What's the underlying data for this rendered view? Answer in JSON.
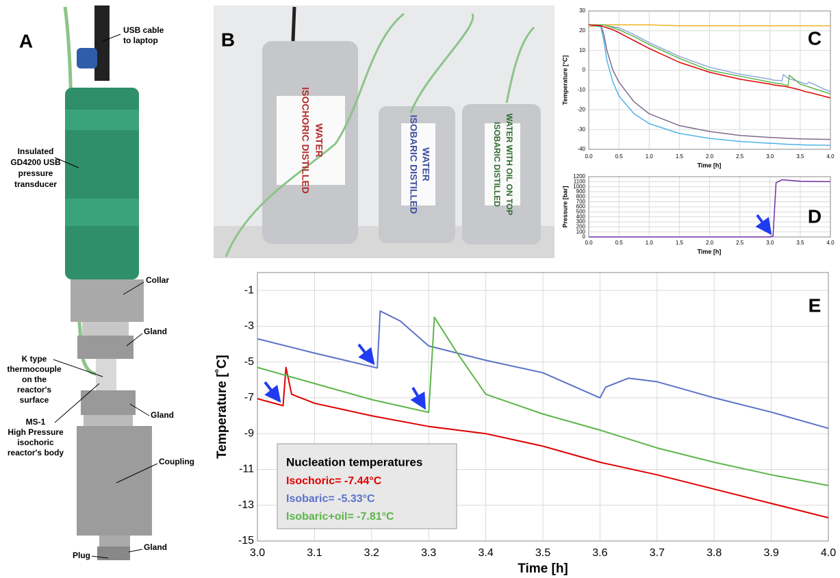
{
  "panel_a": {
    "label": "A",
    "annotations": [
      {
        "lines": [
          "USB cable",
          "to laptop"
        ]
      },
      {
        "lines": [
          "Insulated",
          "GD4200 USB",
          "pressure",
          "transducer"
        ]
      },
      {
        "lines": [
          "Collar"
        ]
      },
      {
        "lines": [
          "Gland"
        ]
      },
      {
        "lines": [
          "K type",
          "thermocouple",
          "on the",
          "reactor's",
          "surface"
        ]
      },
      {
        "lines": [
          "Gland"
        ]
      },
      {
        "lines": [
          "MS-1",
          "High Pressure",
          "isochoric",
          "reactor's body"
        ]
      },
      {
        "lines": [
          "Coupling"
        ]
      },
      {
        "lines": [
          "Plug"
        ]
      },
      {
        "lines": [
          "Gland"
        ]
      }
    ]
  },
  "panel_b": {
    "label": "B",
    "bottles": [
      {
        "lines": [
          "ISOCHORIC DISTILLED",
          "WATER"
        ]
      },
      {
        "lines": [
          "ISOBARIC DISTILLED",
          "WATER"
        ]
      },
      {
        "lines": [
          "ISOBARIC DISTILLED",
          "WATER WITH OIL ON TOP"
        ]
      }
    ]
  },
  "chart_data": [
    {
      "type": "line",
      "panel_label": "C",
      "x_label": "Time [h]",
      "y_label": "Temperature [°C]",
      "x": [
        0,
        0.2,
        0.25,
        0.3,
        0.4,
        0.5,
        0.75,
        1,
        1.5,
        2,
        2.5,
        3,
        3.05,
        3.2,
        3.22,
        3.3,
        3.32,
        3.5,
        3.6,
        3.65,
        4.0
      ],
      "xlim": [
        0,
        4
      ],
      "xticks": [
        {
          "value": 0,
          "label": "0.0"
        },
        0.5,
        {
          "value": 1,
          "label": "1.0"
        },
        1.5,
        {
          "value": 2,
          "label": "2.0"
        },
        2.5,
        {
          "value": 3,
          "label": "3.0"
        },
        3.5,
        {
          "value": 4,
          "label": "4.0"
        }
      ],
      "ylim": [
        -40,
        30
      ],
      "yticks": [
        -40,
        -30,
        -20,
        -10,
        0,
        10,
        20,
        30
      ],
      "grid": true,
      "series": [
        {
          "color": "#f0b323",
          "values": [
            22,
            22.5,
            23,
            23,
            23,
            23,
            23,
            23,
            22.5,
            22.5,
            22.5,
            22.5,
            22.5,
            22.5,
            22.5,
            22.5,
            22.5,
            22.5,
            22.5,
            22.5,
            22.5
          ]
        },
        {
          "color": "#7f6a8a",
          "values": [
            23,
            23,
            18,
            10,
            0,
            -6,
            -16,
            -22,
            -28,
            -31,
            -33,
            -34,
            -34,
            -34.3,
            -34.3,
            -34.5,
            -34.5,
            -34.7,
            -34.8,
            -34.8,
            -35
          ]
        },
        {
          "color": "#4fb3e8",
          "values": [
            23,
            22,
            15,
            5,
            -6,
            -13,
            -22,
            -27,
            -32,
            -34.5,
            -36,
            -37,
            -37,
            -37.3,
            -37.3,
            -37.5,
            -37.5,
            -37.7,
            -37.8,
            -37.8,
            -38
          ]
        },
        {
          "color": "#8fa8dc",
          "values": [
            23,
            23,
            23,
            22.5,
            22,
            21.5,
            18,
            14,
            7,
            1.5,
            -2,
            -4.5,
            -5,
            -5.3,
            -2.2,
            -4,
            -4.3,
            -6,
            -7,
            -6,
            -11
          ]
        },
        {
          "color": "#5db54a",
          "values": [
            23,
            23,
            23,
            22.5,
            21.5,
            20.5,
            17,
            13,
            6,
            0,
            -3,
            -6,
            -6.3,
            -7,
            -7.2,
            -7.8,
            -2.5,
            -7,
            -8,
            -8.5,
            -12
          ]
        },
        {
          "color": "#e00000",
          "values": [
            23,
            22.5,
            22,
            21.5,
            20.5,
            19,
            15,
            11,
            4,
            -1,
            -4.5,
            -7,
            -7.4,
            -8,
            -8,
            -8.5,
            -8.6,
            -10,
            -11,
            -11.2,
            -14
          ]
        }
      ]
    },
    {
      "type": "line",
      "panel_label": "D",
      "x_label": "Time [h]",
      "y_label": "Pressure [bar]",
      "x": [
        0,
        3.0,
        3.05,
        3.1,
        3.2,
        3.5,
        4.0
      ],
      "xlim": [
        0,
        4
      ],
      "xticks": [
        {
          "value": 0,
          "label": "0.0"
        },
        0.5,
        {
          "value": 1,
          "label": "1.0"
        },
        1.5,
        {
          "value": 2,
          "label": "2.0"
        },
        2.5,
        {
          "value": 3,
          "label": "3.0"
        },
        3.5,
        {
          "value": 4,
          "label": "4.0"
        }
      ],
      "ylim": [
        0,
        1200
      ],
      "yticks": [
        0,
        100,
        200,
        300,
        400,
        500,
        600,
        700,
        800,
        900,
        1000,
        1100,
        1200
      ],
      "grid": true,
      "series": [
        {
          "color": "#7030a0",
          "values": [
            0,
            0,
            20,
            1080,
            1140,
            1110,
            1100
          ]
        }
      ]
    },
    {
      "type": "line",
      "panel_label": "E",
      "x_label": "Time [h]",
      "y_label": "Temperature [˚C]",
      "legend_title": "Nucleation temperatures",
      "xlim": [
        3,
        4
      ],
      "xticks": [
        {
          "value": 3,
          "label": "3.0"
        },
        3.1,
        3.2,
        3.3,
        3.4,
        3.5,
        3.6,
        3.7,
        3.8,
        3.9,
        {
          "value": 4,
          "label": "4.0"
        }
      ],
      "ylim": [
        -15,
        0
      ],
      "yticks": [
        -15,
        -13,
        -11,
        -9,
        -7,
        -5,
        -3,
        -1
      ],
      "grid": true,
      "series": [
        {
          "name": "Isochoric= -7.44°C",
          "color": "#e00000",
          "x": [
            3.0,
            3.045,
            3.05,
            3.06,
            3.1,
            3.2,
            3.3,
            3.4,
            3.5,
            3.6,
            3.7,
            3.8,
            3.9,
            4.0
          ],
          "values": [
            -7.05,
            -7.44,
            -5.3,
            -6.8,
            -7.3,
            -8,
            -8.6,
            -9,
            -9.7,
            -10.6,
            -11.3,
            -12.1,
            -12.9,
            -13.7
          ]
        },
        {
          "name": "Isobaric= -5.33°C",
          "color": "#5b72c8",
          "x": [
            3.0,
            3.1,
            3.21,
            3.215,
            3.25,
            3.3,
            3.4,
            3.5,
            3.6,
            3.61,
            3.65,
            3.7,
            3.8,
            3.9,
            4.0
          ],
          "values": [
            -3.7,
            -4.5,
            -5.33,
            -2.15,
            -2.7,
            -4.1,
            -4.9,
            -5.6,
            -7.0,
            -6.4,
            -5.9,
            -6.1,
            -7.0,
            -7.8,
            -8.7
          ]
        },
        {
          "name": "Isobaric+oil= -7.81°C",
          "color": "#5db54a",
          "x": [
            3.0,
            3.1,
            3.2,
            3.3,
            3.31,
            3.35,
            3.4,
            3.5,
            3.6,
            3.7,
            3.8,
            3.9,
            4.0
          ],
          "values": [
            -5.3,
            -6.2,
            -7.1,
            -7.81,
            -2.5,
            -4.5,
            -6.8,
            -7.9,
            -8.8,
            -9.8,
            -10.6,
            -11.3,
            -11.9
          ]
        }
      ]
    }
  ]
}
